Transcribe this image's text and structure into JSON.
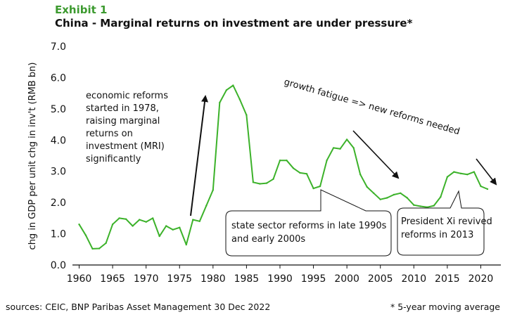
{
  "header": {
    "exhibit": "Exhibit 1",
    "title": "China - Marginal returns on investment are under pressure*"
  },
  "footer": {
    "sources": "sources: CEIC, BNP Paribas Asset Management   30 Dec 2022",
    "footnote": "* 5-year moving average"
  },
  "colors": {
    "line": "#3cb22a",
    "exhibit": "#3c9a2f",
    "text": "#111111"
  },
  "chart_data": {
    "type": "line",
    "title": "China - Marginal returns on investment are under pressure*",
    "xlabel": "",
    "ylabel": "chg in GDP per unit chg in inv't (RMB bn)",
    "xlim": [
      1959,
      2023
    ],
    "ylim": [
      0.0,
      7.0
    ],
    "yticks": [
      "0.0",
      "1.0",
      "2.0",
      "3.0",
      "4.0",
      "5.0",
      "6.0",
      "7.0"
    ],
    "xticks": [
      "1960",
      "1965",
      "1970",
      "1975",
      "1980",
      "1985",
      "1990",
      "1995",
      "2000",
      "2005",
      "2010",
      "2015",
      "2020"
    ],
    "grid": false,
    "series": [
      {
        "x": [
          1960,
          1961,
          1962,
          1963,
          1964,
          1965,
          1966,
          1967,
          1968,
          1969,
          1970,
          1971,
          1972,
          1973,
          1974,
          1975,
          1976,
          1977,
          1978,
          1979,
          1980,
          1981,
          1982,
          1983,
          1984,
          1985,
          1986,
          1987,
          1988,
          1989,
          1990,
          1991,
          1992,
          1993,
          1994,
          1995,
          1996,
          1997,
          1998,
          1999,
          2000,
          2001,
          2002,
          2003,
          2004,
          2005,
          2006,
          2007,
          2008,
          2009,
          2010,
          2011,
          2012,
          2013,
          2014,
          2015,
          2016,
          2017,
          2018,
          2019,
          2020,
          2021
        ],
        "values": [
          1.3,
          0.95,
          0.52,
          0.53,
          0.7,
          1.3,
          1.5,
          1.47,
          1.25,
          1.45,
          1.38,
          1.5,
          0.92,
          1.25,
          1.13,
          1.2,
          0.65,
          1.45,
          1.4,
          1.9,
          2.4,
          5.2,
          5.6,
          5.75,
          5.3,
          4.8,
          2.65,
          2.6,
          2.62,
          2.75,
          3.35,
          3.35,
          3.1,
          2.95,
          2.92,
          2.45,
          2.52,
          3.35,
          3.75,
          3.72,
          4.02,
          3.75,
          2.9,
          2.5,
          2.3,
          2.1,
          2.15,
          2.25,
          2.3,
          2.15,
          1.92,
          1.88,
          1.85,
          1.9,
          2.18,
          2.82,
          2.98,
          2.93,
          2.9,
          2.98,
          2.52,
          2.43
        ]
      }
    ],
    "annotations": {
      "reforms_1978": [
        "economic reforms",
        "started in 1978,",
        "raising marginal",
        "returns on",
        "investment (MRI)",
        "significantly"
      ],
      "growth_fatigue": "growth fatigue => new reforms needed",
      "state_sector": [
        "state sector reforms in late 1990s",
        "and early 2000s"
      ],
      "xi": [
        "President Xi revived",
        "reforms in 2013"
      ]
    }
  }
}
